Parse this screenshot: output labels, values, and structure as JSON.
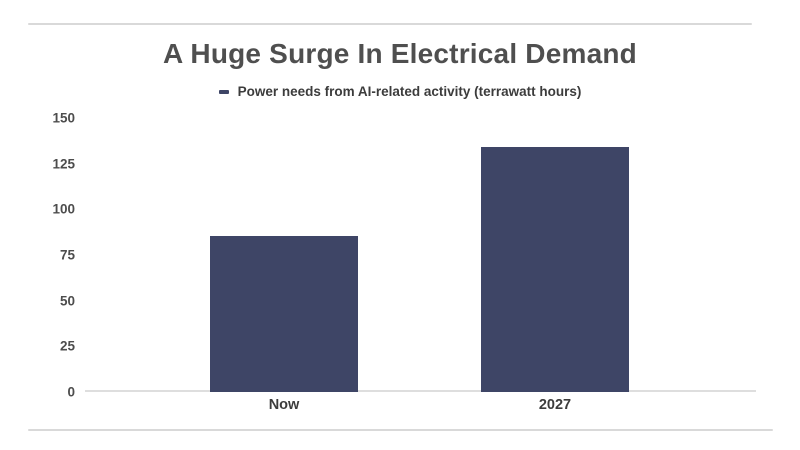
{
  "chart": {
    "title": "A Huge Surge In Electrical Demand",
    "legend_label": "Power needs from AI-related activity (terrawatt hours)"
  },
  "colors": {
    "bar": "#3e4566",
    "axis_baseline": "#dedede",
    "frame_line": "#d9d9d9",
    "title_text": "#4f4f4f",
    "tick_text": "#4d4d4d",
    "category_text": "#3c3c3c"
  },
  "chart_data": {
    "type": "bar",
    "title": "A Huge Surge In Electrical Demand",
    "legend": [
      "Power needs from AI-related activity (terrawatt hours)"
    ],
    "legend_position": "top",
    "categories": [
      "Now",
      "2027"
    ],
    "values": [
      85.4,
      134
    ],
    "xlabel": "",
    "ylabel": "",
    "ylim": [
      0,
      150
    ],
    "yticks": [
      0,
      25,
      50,
      75,
      100,
      125,
      150
    ],
    "grid": false,
    "bar_color": "#3e4566"
  }
}
